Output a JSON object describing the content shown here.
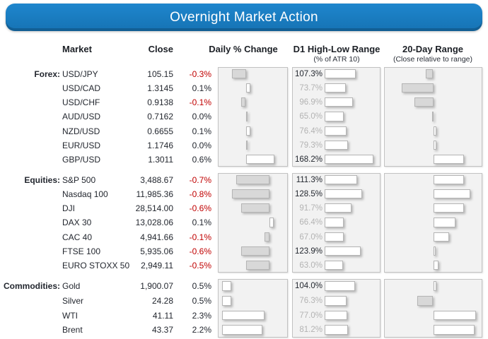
{
  "title": "Overnight Market Action",
  "columns": {
    "market": "Market",
    "close": "Close",
    "daily": "Daily % Change",
    "d1": "D1 High-Low Range",
    "d1_sub": "(% of ATR 10)",
    "range20": "20-Day Range",
    "range20_sub": "(Close relative to range)"
  },
  "colors": {
    "accent_blue": "#1878BE",
    "negative_red": "#C00000",
    "muted_gray": "#B3B3B3",
    "panel_bg": "#F2F2F2",
    "panel_border": "#C2C2C2",
    "bar_positive_fill": "#FFFFFF",
    "bar_negative_fill": "#D8D8D8",
    "text_dark": "#23272F"
  },
  "chart_data": {
    "type": "table",
    "title": "Overnight Market Action",
    "columns": [
      "Market",
      "Close",
      "Daily % Change",
      "D1 High-Low Range (% of ATR 10)",
      "20-Day Range (Close relative to range)"
    ],
    "notes": "Daily % Change and 20-Day Range are horizontal data bars (gray = negative/left of axis, white = positive/right of axis). D1 High-Low Range bars are proportional to % of ATR 10; labels >= 100% are dark, < 100% gray. range_rel values are estimated from bar lengths (-1 = low of range, +1 = high of range).",
    "groups": [
      {
        "label": "Forex:",
        "name": "Forex",
        "rows": [
          {
            "market": "USD/JPY",
            "close": "105.15",
            "daily_pct": -0.3,
            "daily_label": "-0.3%",
            "atr_pct": 107.3,
            "atr_label": "107.3%",
            "range_rel": -0.18
          },
          {
            "market": "USD/CAD",
            "close": "1.3145",
            "daily_pct": 0.1,
            "daily_label": "0.1%",
            "atr_pct": 73.7,
            "atr_label": "73.7%",
            "range_rel": -0.75
          },
          {
            "market": "USD/CHF",
            "close": "0.9138",
            "daily_pct": -0.1,
            "daily_label": "-0.1%",
            "atr_pct": 96.9,
            "atr_label": "96.9%",
            "range_rel": -0.45
          },
          {
            "market": "AUD/USD",
            "close": "0.7162",
            "daily_pct": 0.0,
            "daily_label": "0.0%",
            "atr_pct": 65.0,
            "atr_label": "65.0%",
            "range_rel": -0.03
          },
          {
            "market": "NZD/USD",
            "close": "0.6655",
            "daily_pct": 0.1,
            "daily_label": "0.1%",
            "atr_pct": 76.4,
            "atr_label": "76.4%",
            "range_rel": 0.08
          },
          {
            "market": "EUR/USD",
            "close": "1.1746",
            "daily_pct": 0.0,
            "daily_label": "0.0%",
            "atr_pct": 79.3,
            "atr_label": "79.3%",
            "range_rel": 0.08
          },
          {
            "market": "GBP/USD",
            "close": "1.3011",
            "daily_pct": 0.6,
            "daily_label": "0.6%",
            "atr_pct": 168.2,
            "atr_label": "168.2%",
            "range_rel": 0.72
          }
        ]
      },
      {
        "label": "Equities:",
        "name": "Equities",
        "rows": [
          {
            "market": "S&P 500",
            "close": "3,488.67",
            "daily_pct": -0.7,
            "daily_label": "-0.7%",
            "atr_pct": 111.3,
            "atr_label": "111.3%",
            "range_rel": 0.72
          },
          {
            "market": "Nasdaq 100",
            "close": "11,985.36",
            "daily_pct": -0.8,
            "daily_label": "-0.8%",
            "atr_pct": 128.5,
            "atr_label": "128.5%",
            "range_rel": 0.87
          },
          {
            "market": "DJI",
            "close": "28,514.00",
            "daily_pct": -0.6,
            "daily_label": "-0.6%",
            "atr_pct": 91.7,
            "atr_label": "91.7%",
            "range_rel": 0.72
          },
          {
            "market": "DAX 30",
            "close": "13,028.06",
            "daily_pct": 0.1,
            "daily_label": "0.1%",
            "atr_pct": 66.4,
            "atr_label": "66.4%",
            "range_rel": 0.53
          },
          {
            "market": "CAC 40",
            "close": "4,941.66",
            "daily_pct": -0.1,
            "daily_label": "-0.1%",
            "atr_pct": 67.0,
            "atr_label": "67.0%",
            "range_rel": 0.38
          },
          {
            "market": "FTSE 100",
            "close": "5,935.06",
            "daily_pct": -0.6,
            "daily_label": "-0.6%",
            "atr_pct": 123.9,
            "atr_label": "123.9%",
            "range_rel": 0.05
          },
          {
            "market": "EURO STOXX 50",
            "close": "2,949.11",
            "daily_pct": -0.5,
            "daily_label": "-0.5%",
            "atr_pct": 63.0,
            "atr_label": "63.0%",
            "range_rel": 0.13
          }
        ]
      },
      {
        "label": "Commodities:",
        "name": "Commodities",
        "rows": [
          {
            "market": "Gold",
            "close": "1,900.07",
            "daily_pct": 0.5,
            "daily_label": "0.5%",
            "atr_pct": 104.0,
            "atr_label": "104.0%",
            "range_rel": 0.08
          },
          {
            "market": "Silver",
            "close": "24.28",
            "daily_pct": 0.5,
            "daily_label": "0.5%",
            "atr_pct": 76.3,
            "atr_label": "76.3%",
            "range_rel": -0.37
          },
          {
            "market": "WTI",
            "close": "41.11",
            "daily_pct": 2.3,
            "daily_label": "2.3%",
            "atr_pct": 77.0,
            "atr_label": "77.0%",
            "range_rel": 1.0
          },
          {
            "market": "Brent",
            "close": "43.37",
            "daily_pct": 2.2,
            "daily_label": "2.2%",
            "atr_pct": 81.2,
            "atr_label": "81.2%",
            "range_rel": 0.97
          }
        ]
      }
    ]
  }
}
